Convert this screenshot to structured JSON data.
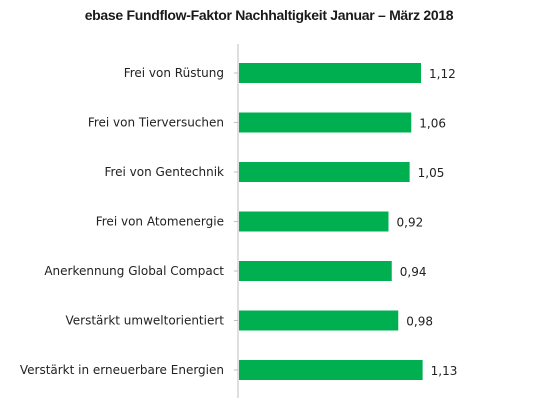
{
  "chart_data": {
    "type": "bar",
    "orientation": "horizontal",
    "title": "ebase Fundflow-Faktor Nachhaltigkeit Januar – März 2018",
    "categories": [
      "Frei von Rüstung",
      "Frei von Tierversuchen",
      "Frei von Gentechnik",
      "Frei von Atomenergie",
      "Anerkennung Global Compact",
      "Verstärkt umweltorientiert",
      "Verstärkt in erneuerbare Energien"
    ],
    "values": [
      1.12,
      1.06,
      1.05,
      0.92,
      0.94,
      0.98,
      1.13
    ],
    "value_labels": [
      "1,12",
      "1,06",
      "1,05",
      "0,92",
      "0,94",
      "0,98",
      "1,13"
    ],
    "xlim": [
      0,
      1.3
    ],
    "grid": false,
    "bar_color": "#00b050",
    "axis_color": "#bfbfbf"
  }
}
